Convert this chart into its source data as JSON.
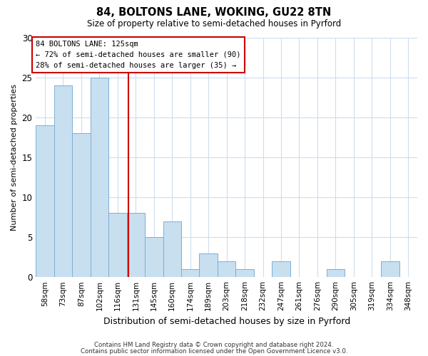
{
  "title": "84, BOLTONS LANE, WOKING, GU22 8TN",
  "subtitle": "Size of property relative to semi-detached houses in Pyrford",
  "xlabel": "Distribution of semi-detached houses by size in Pyrford",
  "ylabel": "Number of semi-detached properties",
  "bin_labels": [
    "58sqm",
    "73sqm",
    "87sqm",
    "102sqm",
    "116sqm",
    "131sqm",
    "145sqm",
    "160sqm",
    "174sqm",
    "189sqm",
    "203sqm",
    "218sqm",
    "232sqm",
    "247sqm",
    "261sqm",
    "276sqm",
    "290sqm",
    "305sqm",
    "319sqm",
    "334sqm",
    "348sqm"
  ],
  "bar_heights": [
    19,
    24,
    18,
    25,
    8,
    8,
    5,
    7,
    1,
    3,
    2,
    1,
    0,
    2,
    0,
    0,
    1,
    0,
    0,
    2,
    0
  ],
  "bar_color": "#c8dff0",
  "bar_edge_color": "#7aafd4",
  "reference_line_x": 4.6,
  "reference_line_color": "#cc0000",
  "annotation_line1": "84 BOLTONS LANE: 125sqm",
  "annotation_line2": "← 72% of semi-detached houses are smaller (90)",
  "annotation_line3": "28% of semi-detached houses are larger (35) →",
  "annotation_box_edge_color": "#cc0000",
  "ylim": [
    0,
    30
  ],
  "yticks": [
    0,
    5,
    10,
    15,
    20,
    25,
    30
  ],
  "footer_line1": "Contains HM Land Registry data © Crown copyright and database right 2024.",
  "footer_line2": "Contains public sector information licensed under the Open Government Licence v3.0.",
  "background_color": "#ffffff",
  "grid_color": "#ccdded"
}
